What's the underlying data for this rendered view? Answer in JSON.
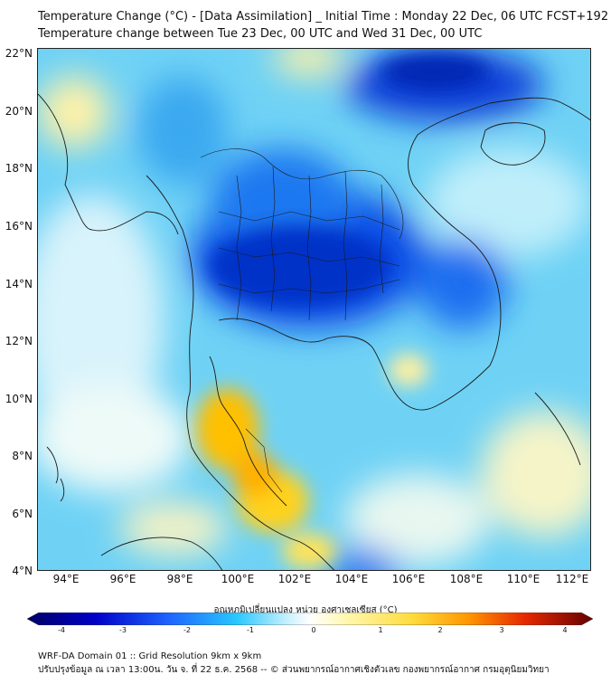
{
  "title_line1": "Temperature Change (°C) - [Data Assimilation] _ Initial Time : Monday 22 Dec, 06 UTC FCST+192",
  "title_line2": "Temperature change between Tue 23 Dec, 00 UTC and Wed 31 Dec, 00 UTC",
  "lat_labels": [
    "22°N",
    "20°N",
    "18°N",
    "16°N",
    "14°N",
    "12°N",
    "10°N",
    "8°N",
    "6°N",
    "4°N"
  ],
  "lon_labels": [
    "94°E",
    "96°E",
    "98°E",
    "100°E",
    "102°E",
    "104°E",
    "106°E",
    "108°E",
    "110°E",
    "112°E"
  ],
  "colorbar": {
    "title": "อุณหภูมิเปลี่ยนแปลง หน่วย องศาเซลเซียส (°C)",
    "ticks": [
      "-4",
      "-3",
      "-2",
      "-1",
      "0",
      "1",
      "2",
      "3",
      "4"
    ],
    "colors": [
      "#000066",
      "#0000b4",
      "#0a3cff",
      "#1e90ff",
      "#3cc8ff",
      "#a0e6ff",
      "#ffffff",
      "#fff5a0",
      "#ffdc3c",
      "#ffa500",
      "#ff5000",
      "#c80000",
      "#640000"
    ]
  },
  "footer_line1": "WRF-DA Domain 01 :: Grid Resolution 9km x 9km",
  "footer_line2": "ปรับปรุงข้อมูล ณ เวลา 13:00น. วัน จ. ที่ 22 ธ.ค. 2568 -- © ส่วนพยากรณ์อากาศเชิงตัวเลข กองพยากรณ์อากาศ กรมอุตุนิยมวิทยา"
}
